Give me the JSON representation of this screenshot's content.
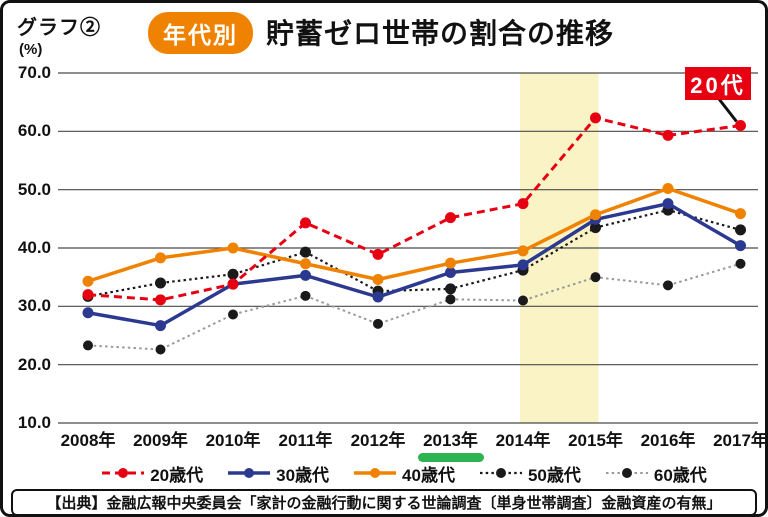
{
  "header": {
    "graph_label": "グラフ②",
    "unit_label": "(%)",
    "badge": "年代別",
    "badge_color": "#ef8200",
    "title": "貯蓄ゼロ世帯の割合の推移"
  },
  "annotation": {
    "label": "20代",
    "color": "#e60012",
    "target_category": "2017年",
    "target_series": "20歳代"
  },
  "source": {
    "text": "【出典】金融広報中央委員会「家計の金融行動に関する世論調査〔単身世帯調査〕金融資産の有無」"
  },
  "chart_data": {
    "type": "line",
    "title": "年代別 貯蓄ゼロ世帯の割合の推移",
    "xlabel": "",
    "ylabel": "%",
    "ylim": [
      10,
      70
    ],
    "ytick_step": 10,
    "ytick_labels": [
      "70.0",
      "60.0",
      "50.0",
      "40.0",
      "30.0",
      "20.0",
      "10.0"
    ],
    "grid": true,
    "legend_position": "bottom",
    "categories": [
      "2008年",
      "2009年",
      "2010年",
      "2011年",
      "2012年",
      "2013年",
      "2014年",
      "2015年",
      "2016年",
      "2017年"
    ],
    "highlight_band": {
      "from_category": "2014年",
      "to_category": "2015年",
      "color": "#faf3c5"
    },
    "underlined_category": {
      "category": "2013年",
      "color": "#2db351"
    },
    "series": [
      {
        "name": "20歳代",
        "color": "#e60012",
        "line": "dashed",
        "width": 3,
        "values": [
          32.0,
          31.1,
          33.8,
          44.3,
          38.9,
          45.2,
          47.6,
          62.3,
          59.3,
          61.0
        ]
      },
      {
        "name": "30歳代",
        "color": "#2b3990",
        "line": "solid",
        "width": 3.5,
        "values": [
          28.9,
          26.7,
          33.8,
          35.3,
          31.6,
          35.8,
          37.1,
          44.9,
          47.6,
          40.4
        ]
      },
      {
        "name": "40歳代",
        "color": "#ef8200",
        "line": "solid",
        "width": 3.5,
        "values": [
          34.3,
          38.3,
          40.0,
          37.3,
          34.6,
          37.4,
          39.5,
          45.7,
          50.2,
          45.9
        ]
      },
      {
        "name": "50歳代",
        "color": "#1a1a1a",
        "line": "dotted",
        "width": 2.2,
        "values": [
          31.7,
          34.0,
          35.5,
          39.3,
          32.6,
          33.0,
          36.2,
          43.5,
          46.5,
          43.1
        ]
      },
      {
        "name": "60歳代",
        "color": "#9a9a9a",
        "dot_color": "#1a1a1a",
        "line": "dotted",
        "width": 2,
        "values": [
          23.3,
          22.6,
          28.6,
          31.8,
          27.0,
          31.2,
          31.0,
          35.0,
          33.6,
          37.3
        ]
      }
    ]
  }
}
